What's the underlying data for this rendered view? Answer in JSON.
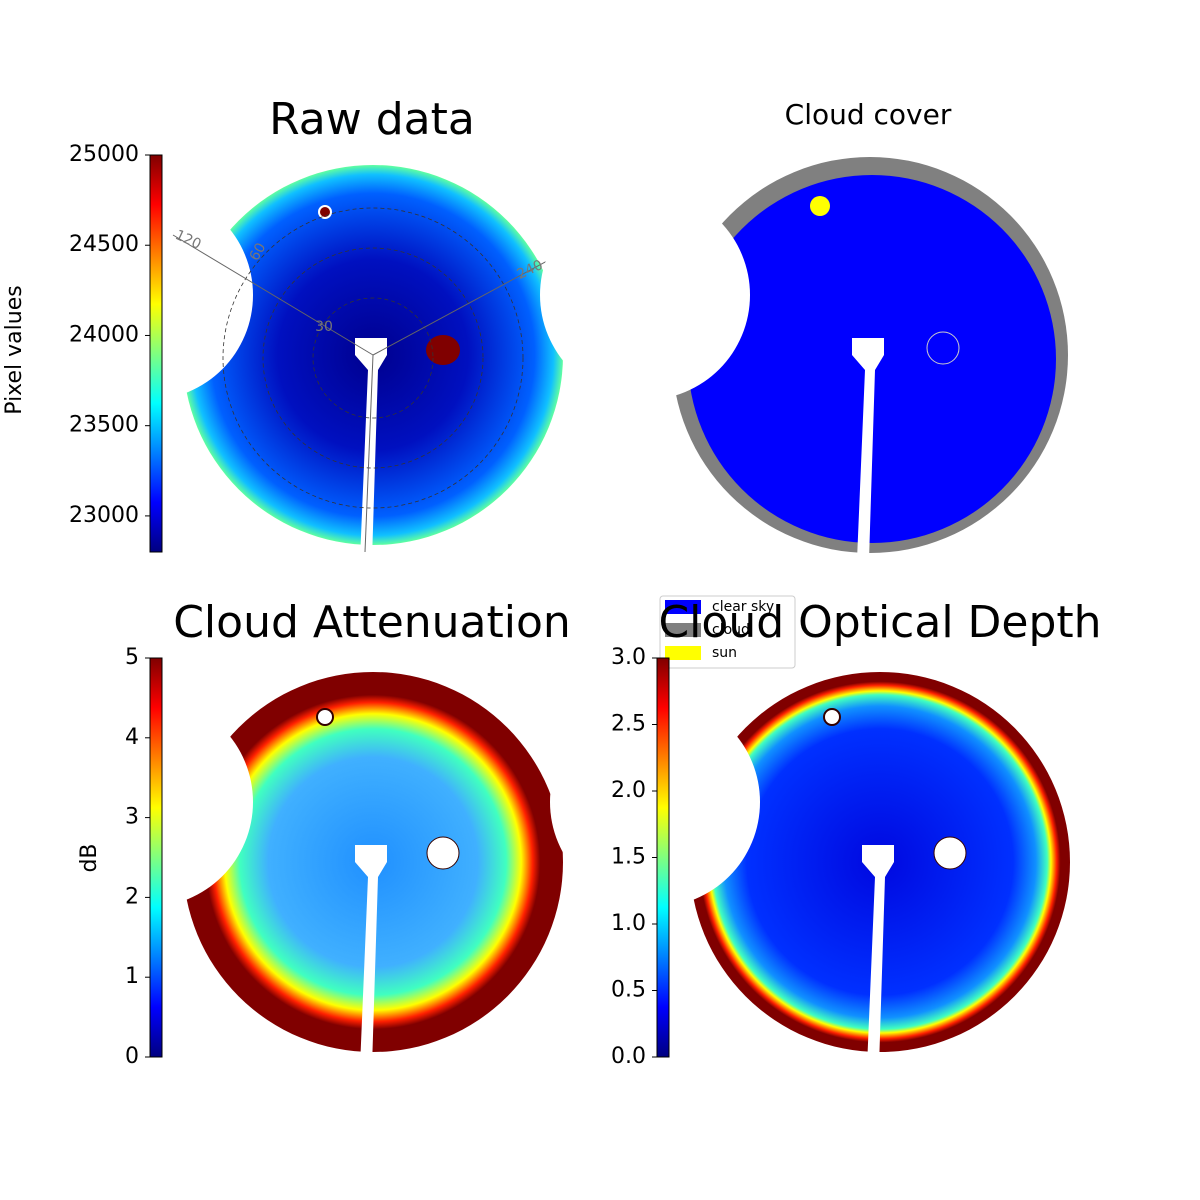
{
  "chart_data": [
    {
      "type": "image",
      "title": "Raw data",
      "colormap": "jet",
      "ylabel": "Pixel values",
      "ylim": [
        22800,
        25000
      ],
      "yticks": [
        23000,
        23500,
        24000,
        24500,
        25000
      ],
      "annotations": [
        "120",
        "240",
        "30",
        "60"
      ]
    },
    {
      "type": "image",
      "title": "Cloud cover",
      "legend": [
        {
          "name": "clear sky",
          "color": "#0000ff"
        },
        {
          "name": "cloud",
          "color": "#808080"
        },
        {
          "name": "sun",
          "color": "#ffff00"
        }
      ]
    },
    {
      "type": "image",
      "title": "Cloud Attenuation",
      "colormap": "jet",
      "ylabel": "dB",
      "ylim": [
        0,
        5
      ],
      "yticks": [
        0,
        1,
        2,
        3,
        4,
        5
      ]
    },
    {
      "type": "image",
      "title": "Cloud Optical Depth",
      "colormap": "jet",
      "ylim": [
        0,
        3
      ],
      "yticks": [
        {
          "value": 0,
          "label": "0.0"
        },
        0.5,
        {
          "value": 1,
          "label": "1.0"
        },
        1.5,
        {
          "value": 2,
          "label": "2.0"
        },
        2.5,
        {
          "value": 3,
          "label": "3.0"
        }
      ]
    }
  ]
}
